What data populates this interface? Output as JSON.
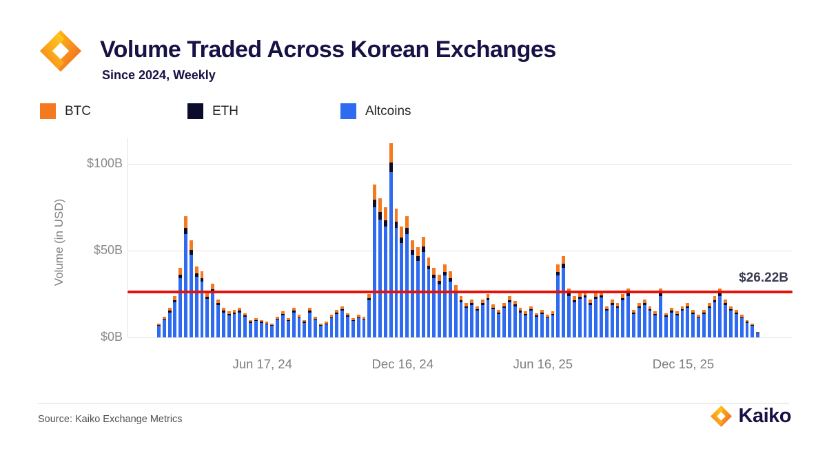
{
  "header": {
    "title": "Volume Traded Across Korean Exchanges",
    "subtitle": "Since 2024, Weekly"
  },
  "legend": [
    {
      "label": "BTC",
      "color": "#F4791F"
    },
    {
      "label": "ETH",
      "color": "#0B0B2B"
    },
    {
      "label": "Altcoins",
      "color": "#2E6BF0"
    }
  ],
  "chart_data": {
    "type": "bar",
    "stacked": true,
    "title": "Volume Traded Across Korean Exchanges",
    "subtitle": "Since 2024, Weekly",
    "xlabel": "",
    "ylabel": "Volume (in USD)",
    "unit": "$B",
    "ylim": [
      0,
      115
    ],
    "grid": true,
    "legend_position": "top",
    "y_ticks": [
      {
        "value": 0,
        "label": "$0B"
      },
      {
        "value": 50,
        "label": "$50B"
      },
      {
        "value": 100,
        "label": "$100B"
      }
    ],
    "x_ticks": [
      {
        "index": 19,
        "label": "Jun 17, 24"
      },
      {
        "index": 45,
        "label": "Dec 16, 24"
      },
      {
        "index": 71,
        "label": "Jun 16, 25"
      },
      {
        "index": 97,
        "label": "Dec 15, 25"
      }
    ],
    "reference_line": {
      "value": 26.22,
      "label": "$26.22B",
      "color": "#E3120B"
    },
    "series": [
      {
        "name": "Altcoins",
        "color": "#2E6BF0",
        "values": [
          6.8,
          10.2,
          14.45,
          20.4,
          34,
          59.5,
          47.6,
          34.85,
          32.3,
          22.1,
          26.35,
          18.7,
          14.45,
          12.75,
          13.6,
          14.45,
          11.9,
          8.5,
          9.35,
          8.5,
          7.65,
          6.8,
          10.2,
          12.75,
          9.35,
          14.45,
          11.05,
          8.5,
          14.45,
          10.2,
          6.8,
          7.65,
          11.05,
          13.6,
          15.3,
          11.9,
          9.35,
          11.05,
          10.2,
          21.25,
          74.8,
          68,
          63.75,
          95.2,
          62.9,
          54.4,
          59.5,
          47.6,
          44.2,
          49.3,
          39.1,
          34,
          30.6,
          35.7,
          32.3,
          25.5,
          20.4,
          17,
          18.7,
          15.3,
          18.7,
          21.25,
          16.15,
          13.6,
          17,
          20.4,
          17.85,
          14.45,
          12.75,
          15.3,
          11.9,
          13.6,
          11.05,
          12.75,
          35.7,
          39.95,
          23.8,
          20.4,
          22.1,
          22.95,
          18.7,
          22.1,
          22.95,
          15.3,
          18.7,
          17,
          21.25,
          23.8,
          13.6,
          17,
          18.7,
          15.3,
          12.75,
          23.8,
          11.9,
          14.45,
          12.75,
          15.3,
          17,
          13.6,
          11.05,
          13.6,
          17,
          20.4,
          23.8,
          18.7,
          15.3,
          13.6,
          11.05,
          8.5,
          6.8,
          2.55
        ]
      },
      {
        "name": "ETH",
        "color": "#0B0B2B",
        "values": [
          0.4,
          0.6,
          0.85,
          1.2,
          2,
          3.5,
          2.8,
          2.05,
          1.9,
          1.3,
          1.55,
          1.1,
          0.85,
          0.75,
          0.8,
          0.85,
          0.7,
          0.5,
          0.55,
          0.5,
          0.45,
          0.4,
          0.6,
          0.75,
          0.55,
          0.85,
          0.65,
          0.5,
          0.85,
          0.6,
          0.4,
          0.45,
          0.65,
          0.8,
          0.9,
          0.7,
          0.55,
          0.65,
          0.6,
          1.25,
          4.4,
          4,
          3.75,
          5.6,
          3.7,
          3.2,
          3.5,
          2.8,
          2.6,
          2.9,
          2.3,
          2,
          1.8,
          2.1,
          1.9,
          1.5,
          1.2,
          1,
          1.1,
          0.9,
          1.1,
          1.25,
          0.95,
          0.8,
          1,
          1.2,
          1.05,
          0.85,
          0.75,
          0.9,
          0.7,
          0.8,
          0.65,
          0.75,
          2.1,
          2.35,
          1.4,
          1.2,
          1.3,
          1.35,
          1.1,
          1.3,
          1.35,
          0.9,
          1.1,
          1,
          1.25,
          1.4,
          0.8,
          1,
          1.1,
          0.9,
          0.75,
          1.4,
          0.7,
          0.85,
          0.75,
          0.9,
          1,
          0.8,
          0.65,
          0.8,
          1,
          1.2,
          1.4,
          1.1,
          0.9,
          0.8,
          0.65,
          0.5,
          0.4,
          0.15
        ]
      },
      {
        "name": "BTC",
        "color": "#F4791F",
        "values": [
          0.8,
          1.2,
          1.7,
          2.4,
          4,
          7,
          5.6,
          4.1,
          3.8,
          2.6,
          3.1,
          2.2,
          1.7,
          1.5,
          1.6,
          1.7,
          1.4,
          1,
          1.1,
          1,
          0.9,
          0.8,
          1.2,
          1.5,
          1.1,
          1.7,
          1.3,
          1,
          1.7,
          1.2,
          0.8,
          0.9,
          1.3,
          1.6,
          1.8,
          1.4,
          1.1,
          1.3,
          1.2,
          2.5,
          8.8,
          8,
          7.5,
          11.2,
          7.4,
          6.4,
          7,
          5.6,
          5.2,
          5.8,
          4.6,
          4,
          3.6,
          4.2,
          3.8,
          3,
          2.4,
          2,
          2.2,
          1.8,
          2.2,
          2.5,
          1.9,
          1.6,
          2,
          2.4,
          2.1,
          1.7,
          1.5,
          1.8,
          1.4,
          1.6,
          1.3,
          1.5,
          4.2,
          4.7,
          2.8,
          2.4,
          2.6,
          2.7,
          2.2,
          2.6,
          2.7,
          1.8,
          2.2,
          2,
          2.5,
          2.8,
          1.6,
          2,
          2.2,
          1.8,
          1.5,
          2.8,
          1.4,
          1.7,
          1.5,
          1.8,
          2,
          1.6,
          1.3,
          1.6,
          2,
          2.4,
          2.8,
          2.2,
          1.8,
          1.6,
          1.3,
          1,
          0.8,
          0.3
        ]
      }
    ]
  },
  "footer": {
    "source": "Source: Kaiko Exchange Metrics",
    "brand": "Kaiko"
  }
}
